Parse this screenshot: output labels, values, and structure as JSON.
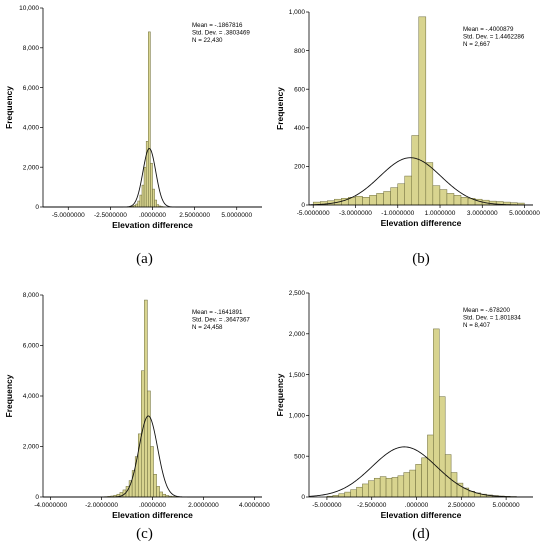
{
  "chart_data": [
    {
      "type": "bar",
      "panel_label": "(a)",
      "xlabel": "Elevation difference",
      "ylabel": "Frequency",
      "stats": [
        "Mean = -.1867816",
        "Std. Dev. = .3803469",
        "N = 22,430"
      ],
      "xlim": [
        -6.5,
        6.5
      ],
      "ylim": [
        0,
        10000
      ],
      "x_ticks": [
        -5,
        -2.5,
        0,
        2.5,
        5
      ],
      "x_tick_labels": [
        "-5.0000000",
        "-2.5000000",
        ".0000000",
        "2.5000000",
        "5.0000000"
      ],
      "y_ticks": [
        0,
        2000,
        4000,
        6000,
        8000,
        10000
      ],
      "y_tick_labels": [
        "0",
        "2,000",
        "4,000",
        "6,000",
        "8,000",
        "10,000"
      ],
      "bin_start": -1.5,
      "bin_width": 0.125,
      "values": [
        10,
        20,
        40,
        80,
        150,
        300,
        600,
        1100,
        2000,
        3300,
        8800,
        2200,
        900,
        350,
        120,
        50,
        25,
        10
      ],
      "normal_curve": {
        "mean": -0.1867816,
        "sd": 0.3803469,
        "n": 22430
      }
    },
    {
      "type": "bar",
      "panel_label": "(b)",
      "xlabel": "Elevation difference",
      "ylabel": "Frequency",
      "stats": [
        "Mean = -.4000879",
        "Std. Dev. = 1.4462286",
        "N = 2,667"
      ],
      "xlim": [
        -5.2,
        5.4
      ],
      "ylim": [
        0,
        1000
      ],
      "x_ticks": [
        -5,
        -3,
        -1,
        1,
        3,
        5
      ],
      "x_tick_labels": [
        "-5.0000000",
        "-3.0000000",
        "-1.0000000",
        "1.0000000",
        "3.0000000",
        "5.0000000"
      ],
      "y_ticks": [
        0,
        200,
        400,
        600,
        800,
        1000
      ],
      "y_tick_labels": [
        "0",
        "200",
        "400",
        "600",
        "800",
        "1,000"
      ],
      "bin_start": -5,
      "bin_width": 0.333,
      "values": [
        15,
        18,
        22,
        30,
        35,
        40,
        45,
        40,
        50,
        60,
        70,
        90,
        110,
        150,
        360,
        975,
        220,
        100,
        80,
        60,
        50,
        40,
        35,
        30,
        25,
        20,
        18,
        15,
        12,
        10
      ],
      "normal_curve": {
        "mean": -0.4000879,
        "sd": 1.4462286,
        "n": 2667
      }
    },
    {
      "type": "bar",
      "panel_label": "(c)",
      "xlabel": "Elevation difference",
      "ylabel": "Frequency",
      "stats": [
        "Mean = -.1641891",
        "Std. Dev. = .3647367",
        "N = 24,458"
      ],
      "xlim": [
        -4.3,
        4.3
      ],
      "ylim": [
        0,
        8000
      ],
      "x_ticks": [
        -4,
        -2,
        0,
        2,
        4
      ],
      "x_tick_labels": [
        "-4.0000000",
        "-2.0000000",
        ".0000000",
        "2.0000000",
        "4.0000000"
      ],
      "y_ticks": [
        0,
        2000,
        4000,
        6000,
        8000
      ],
      "y_tick_labels": [
        "0",
        "2,000",
        "4,000",
        "6,000",
        "8,000"
      ],
      "bin_start": -2.0,
      "bin_width": 0.12,
      "values": [
        10,
        15,
        25,
        40,
        70,
        110,
        180,
        280,
        420,
        650,
        1050,
        1600,
        2500,
        5000,
        7800,
        4200,
        2000,
        900,
        420,
        200,
        110,
        60,
        35,
        20,
        12
      ],
      "normal_curve": {
        "mean": -0.1641891,
        "sd": 0.3647367,
        "n": 24458
      }
    },
    {
      "type": "bar",
      "panel_label": "(d)",
      "xlabel": "Elevation difference",
      "ylabel": "Frequency",
      "stats": [
        "Mean = -.678200",
        "Std. Dev. = 1.801834",
        "N = 8,407"
      ],
      "xlim": [
        -6.0,
        6.5
      ],
      "ylim": [
        0,
        2500
      ],
      "x_ticks": [
        -5,
        -2.5,
        0,
        2.5,
        5
      ],
      "x_tick_labels": [
        "-5.000000",
        "-2.500000",
        ".000000",
        "2.500000",
        "5.000000"
      ],
      "y_ticks": [
        0,
        500,
        1000,
        1500,
        2000,
        2500
      ],
      "y_tick_labels": [
        "0",
        "500",
        "1,000",
        "1,500",
        "2,000",
        "2,500"
      ],
      "bin_start": -5.0,
      "bin_width": 0.33,
      "values": [
        10,
        20,
        40,
        60,
        90,
        120,
        160,
        200,
        230,
        250,
        230,
        240,
        260,
        300,
        330,
        400,
        480,
        760,
        2060,
        1230,
        520,
        300,
        170,
        110,
        70,
        50,
        35,
        25,
        18,
        12,
        8,
        5
      ],
      "normal_curve": {
        "mean": -0.6782,
        "sd": 1.801834,
        "n": 8407
      }
    }
  ]
}
